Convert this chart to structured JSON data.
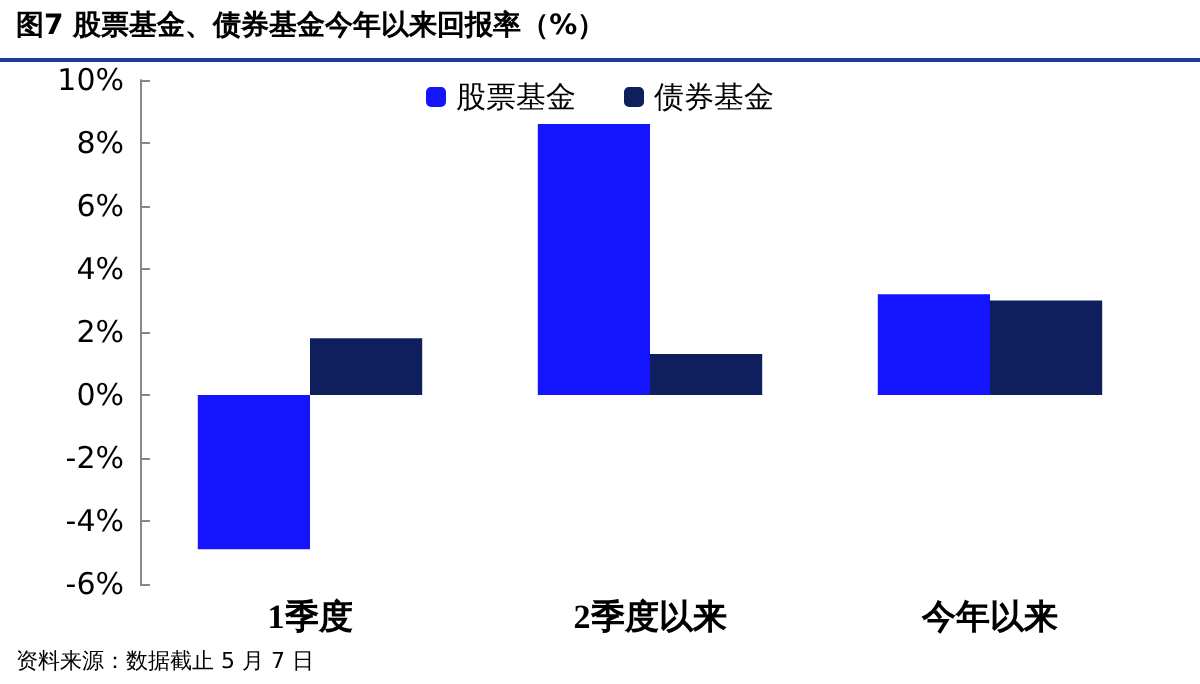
{
  "chart_data": {
    "type": "bar",
    "title": "图7 股票基金、债券基金今年以来回报率（%）",
    "categories": [
      "1季度",
      "2季度以来",
      "今年以来"
    ],
    "series": [
      {
        "name": "股票基金",
        "color": "#1414ff",
        "values": [
          -4.9,
          8.6,
          3.2
        ]
      },
      {
        "name": "债券基金",
        "color": "#0f1f5e",
        "values": [
          1.8,
          1.3,
          3.0
        ]
      }
    ],
    "ylim": [
      -6,
      10
    ],
    "yticks": [
      {
        "value": -6,
        "label": "-6%"
      },
      {
        "value": -4,
        "label": "-4%"
      },
      {
        "value": -2,
        "label": "-2%"
      },
      {
        "value": 0,
        "label": "0%"
      },
      {
        "value": 2,
        "label": "2%"
      },
      {
        "value": 4,
        "label": "4%"
      },
      {
        "value": 6,
        "label": "6%"
      },
      {
        "value": 8,
        "label": "8%"
      },
      {
        "value": 10,
        "label": "10%"
      }
    ],
    "grid": false,
    "legend": "top",
    "annotations": [
      "资料来源：数据截止 5 月 7 日"
    ]
  }
}
